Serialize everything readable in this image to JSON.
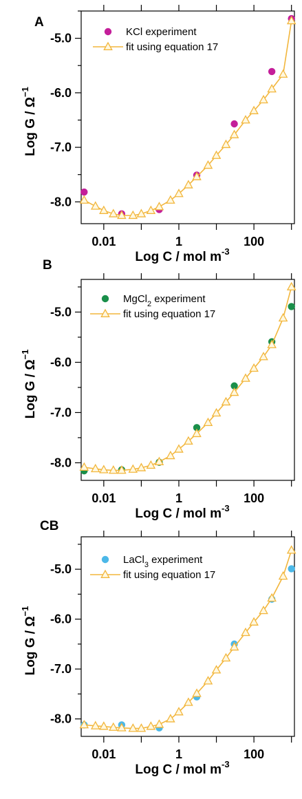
{
  "chart_data": [
    {
      "type": "scatter",
      "panel_label": "A",
      "xlabel": "Log C / mol m",
      "xlabel_sup": "-3",
      "ylabel": "Log G / Ω",
      "ylabel_sup": "−1",
      "x_scale": "log",
      "xlim": [
        0.0025,
        1200
      ],
      "ylim": [
        -8.4,
        -4.5
      ],
      "x_ticks": [
        {
          "value": 0.01,
          "label": "0.01"
        },
        {
          "value": 1,
          "label": "1"
        },
        {
          "value": 100,
          "label": "100"
        }
      ],
      "y_ticks": [
        {
          "value": -5,
          "label": "-5.0"
        },
        {
          "value": -6,
          "label": "-6.0"
        },
        {
          "value": -7,
          "label": "-7.0"
        },
        {
          "value": -8,
          "label": "-8.0"
        }
      ],
      "grid": false,
      "legend_position": "top-left",
      "series": [
        {
          "name": "KCl experiment",
          "name_parts": [
            {
              "t": "KCl experiment"
            }
          ],
          "kind": "points",
          "color": "#c41e9a",
          "x": [
            0.003,
            0.03,
            0.3,
            3,
            30,
            300,
            1000
          ],
          "y": [
            -7.82,
            -8.22,
            -8.14,
            -7.51,
            -6.57,
            -5.61,
            -4.64
          ]
        },
        {
          "name": "fit using equation 17",
          "name_parts": [
            {
              "t": "fit using equation 17"
            }
          ],
          "kind": "line-triangles",
          "color": "#f2b63c",
          "x": [
            0.003,
            0.006,
            0.01,
            0.018,
            0.03,
            0.06,
            0.1,
            0.18,
            0.3,
            0.6,
            1,
            1.8,
            3,
            6,
            10,
            18,
            30,
            60,
            100,
            180,
            300,
            600,
            1000
          ],
          "y": [
            -7.97,
            -8.08,
            -8.16,
            -8.22,
            -8.25,
            -8.25,
            -8.22,
            -8.16,
            -8.09,
            -7.97,
            -7.85,
            -7.69,
            -7.54,
            -7.33,
            -7.15,
            -6.95,
            -6.77,
            -6.5,
            -6.33,
            -6.13,
            -5.93,
            -5.66,
            -4.68
          ]
        }
      ]
    },
    {
      "type": "scatter",
      "panel_label": "B",
      "xlabel": "Log C / mol m",
      "xlabel_sup": "-3",
      "ylabel": "Log G / Ω",
      "ylabel_sup": "−1",
      "x_scale": "log",
      "xlim": [
        0.0025,
        1200
      ],
      "ylim": [
        -8.35,
        -4.35
      ],
      "x_ticks": [
        {
          "value": 0.01,
          "label": "0.01"
        },
        {
          "value": 1,
          "label": "1"
        },
        {
          "value": 100,
          "label": "100"
        }
      ],
      "y_ticks": [
        {
          "value": -5,
          "label": "-5.0"
        },
        {
          "value": -6,
          "label": "-6.0"
        },
        {
          "value": -7,
          "label": "-7.0"
        },
        {
          "value": -8,
          "label": "-8.0"
        }
      ],
      "grid": false,
      "legend_position": "top-left",
      "series": [
        {
          "name": "MgCl2 experiment",
          "name_parts": [
            {
              "t": "MgCl"
            },
            {
              "t": "2",
              "sub": true
            },
            {
              "t": " experiment"
            }
          ],
          "kind": "points",
          "color": "#1a8f4a",
          "x": [
            0.003,
            0.03,
            0.3,
            3,
            30,
            300,
            1000
          ],
          "y": [
            -8.16,
            -8.14,
            -7.99,
            -7.3,
            -6.47,
            -5.59,
            -4.89
          ]
        },
        {
          "name": "fit using equation 17",
          "name_parts": [
            {
              "t": "fit using equation 17"
            }
          ],
          "kind": "line-triangles",
          "color": "#f2b63c",
          "x": [
            0.003,
            0.006,
            0.01,
            0.018,
            0.03,
            0.06,
            0.1,
            0.18,
            0.3,
            0.6,
            1,
            1.8,
            3,
            6,
            10,
            18,
            30,
            60,
            100,
            180,
            300,
            600,
            1000
          ],
          "y": [
            -8.09,
            -8.12,
            -8.14,
            -8.15,
            -8.15,
            -8.13,
            -8.1,
            -8.05,
            -7.98,
            -7.86,
            -7.73,
            -7.57,
            -7.42,
            -7.2,
            -7.01,
            -6.79,
            -6.6,
            -6.32,
            -6.12,
            -5.89,
            -5.65,
            -5.12,
            -4.5
          ]
        }
      ]
    },
    {
      "type": "scatter",
      "panel_label": "CB",
      "xlabel": "Log C / mol m",
      "xlabel_sup": "-3",
      "ylabel": "Log G / Ω",
      "ylabel_sup": "−1",
      "x_scale": "log",
      "xlim": [
        0.0025,
        1200
      ],
      "ylim": [
        -8.35,
        -4.35
      ],
      "x_ticks": [
        {
          "value": 0.01,
          "label": "0.01"
        },
        {
          "value": 1,
          "label": "1"
        },
        {
          "value": 100,
          "label": "100"
        }
      ],
      "y_ticks": [
        {
          "value": -5,
          "label": "-5.0"
        },
        {
          "value": -6,
          "label": "-6.0"
        },
        {
          "value": -7,
          "label": "-7.0"
        },
        {
          "value": -8,
          "label": "-8.0"
        }
      ],
      "grid": false,
      "legend_position": "top-left",
      "series": [
        {
          "name": "LaCl3 experiment",
          "name_parts": [
            {
              "t": "LaCl"
            },
            {
              "t": "3",
              "sub": true
            },
            {
              "t": " experiment"
            }
          ],
          "kind": "points",
          "color": "#4cb8e8",
          "x": [
            0.003,
            0.03,
            0.3,
            3,
            30,
            300,
            1000
          ],
          "y": [
            -8.12,
            -8.12,
            -8.18,
            -7.56,
            -6.5,
            -5.6,
            -4.99
          ]
        },
        {
          "name": "fit using equation 17",
          "name_parts": [
            {
              "t": "fit using equation 17"
            }
          ],
          "kind": "line-triangles",
          "color": "#f2b63c",
          "x": [
            0.003,
            0.006,
            0.01,
            0.018,
            0.03,
            0.06,
            0.1,
            0.18,
            0.3,
            0.6,
            1,
            1.8,
            3,
            6,
            10,
            18,
            30,
            60,
            100,
            180,
            300,
            600,
            1000
          ],
          "y": [
            -8.12,
            -8.14,
            -8.15,
            -8.17,
            -8.18,
            -8.19,
            -8.19,
            -8.15,
            -8.11,
            -8.0,
            -7.86,
            -7.67,
            -7.49,
            -7.24,
            -7.02,
            -6.78,
            -6.56,
            -6.27,
            -6.06,
            -5.83,
            -5.58,
            -5.14,
            -4.62
          ]
        }
      ]
    }
  ]
}
